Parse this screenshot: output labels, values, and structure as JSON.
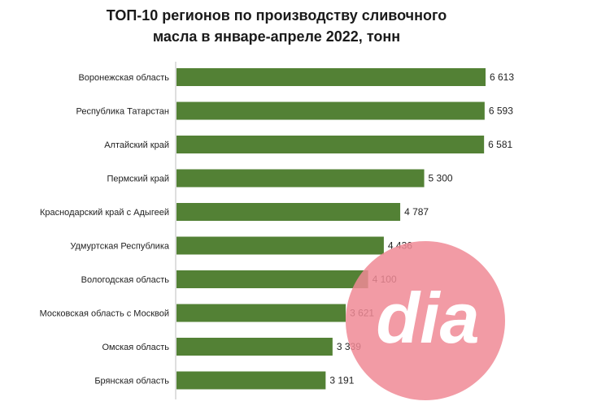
{
  "chart_data": {
    "type": "bar",
    "orientation": "horizontal",
    "title_lines": [
      "ТОП-10 регионов по производству сливочного",
      "масла в январе-апреле 2022, тонн"
    ],
    "categories": [
      "Воронежская область",
      "Республика Татарстан",
      "Алтайский край",
      "Пермский край",
      "Краснодарский край с Адыгеей",
      "Удмуртская Республика",
      "Вологодская область",
      "Московская область с Москвой",
      "Омская область",
      "Брянская область"
    ],
    "values": [
      6613,
      6593,
      6581,
      5300,
      4787,
      4436,
      4100,
      3621,
      3339,
      3191
    ],
    "value_labels": [
      "6 613",
      "6 593",
      "6 581",
      "5 300",
      "4 787",
      "4 436",
      "4 100",
      "3 621",
      "3 339",
      "3 191"
    ],
    "bar_color": "#538135",
    "xlim": [
      0,
      6613
    ],
    "grid": false,
    "legend": "none"
  },
  "watermark": {
    "text": "dia",
    "circle_color": "#f08a95"
  }
}
